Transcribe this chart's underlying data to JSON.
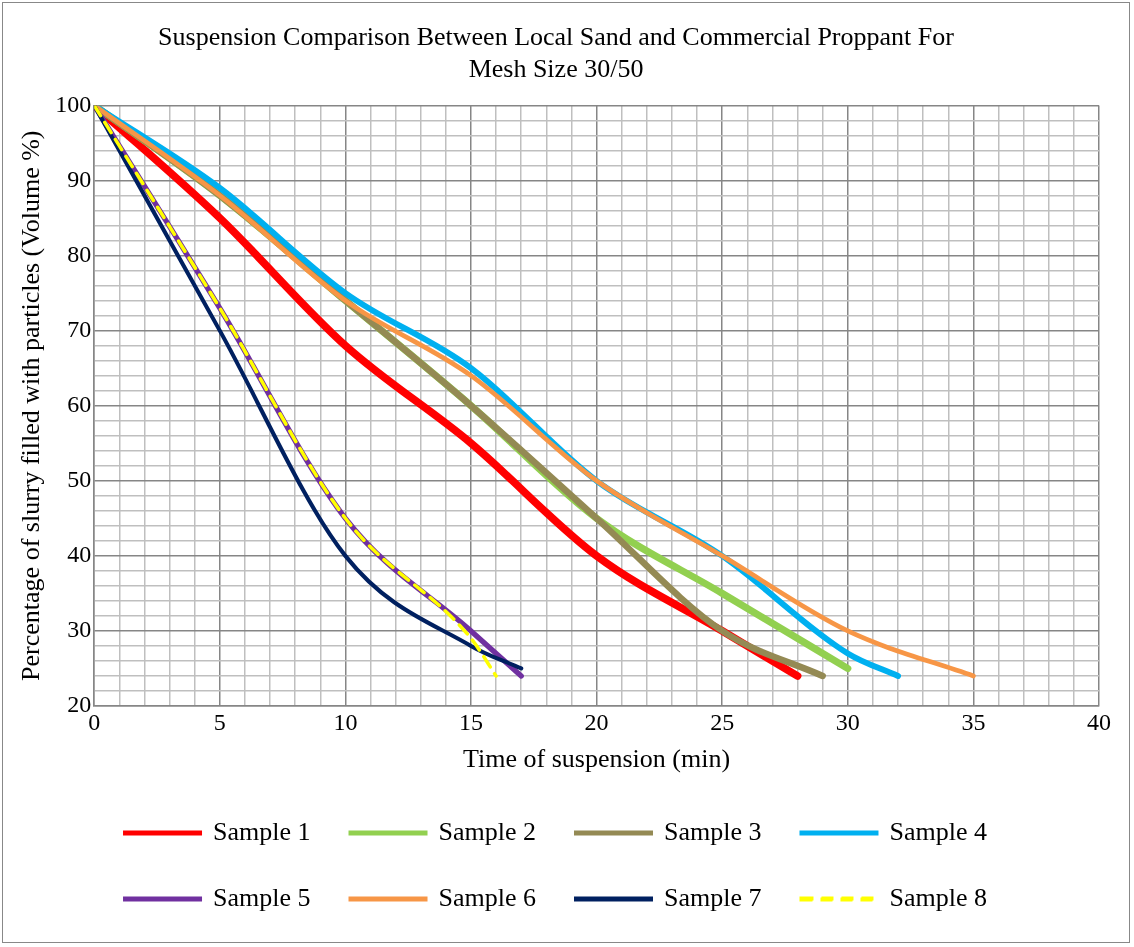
{
  "chart_data": {
    "type": "line",
    "title": "Suspension Comparison Between Local Sand and Commercial Proppant For Mesh Size 30/50",
    "xlabel": "Time of suspension (min)",
    "ylabel": "Percentage of slurry filled with particles (Volume %)",
    "xlim": [
      0,
      40
    ],
    "ylim": [
      20,
      100
    ],
    "xticks": [
      0,
      {
        "value": 1,
        "label": null
      },
      {
        "value": 2,
        "label": null
      },
      {
        "value": 3,
        "label": null
      },
      {
        "value": 4,
        "label": null
      },
      5,
      {
        "value": 6,
        "label": null
      },
      {
        "value": 7,
        "label": null
      },
      {
        "value": 8,
        "label": null
      },
      {
        "value": 9,
        "label": null
      },
      10,
      {
        "value": 11,
        "label": null
      },
      {
        "value": 12,
        "label": null
      },
      {
        "value": 13,
        "label": null
      },
      {
        "value": 14,
        "label": null
      },
      15,
      {
        "value": 16,
        "label": null
      },
      {
        "value": 17,
        "label": null
      },
      {
        "value": 18,
        "label": null
      },
      {
        "value": 19,
        "label": null
      },
      20,
      {
        "value": 21,
        "label": null
      },
      {
        "value": 22,
        "label": null
      },
      {
        "value": 23,
        "label": null
      },
      {
        "value": 24,
        "label": null
      },
      25,
      {
        "value": 26,
        "label": null
      },
      {
        "value": 27,
        "label": null
      },
      {
        "value": 28,
        "label": null
      },
      {
        "value": 29,
        "label": null
      },
      30,
      {
        "value": 31,
        "label": null
      },
      {
        "value": 32,
        "label": null
      },
      {
        "value": 33,
        "label": null
      },
      {
        "value": 34,
        "label": null
      },
      35,
      {
        "value": 36,
        "label": null
      },
      {
        "value": 37,
        "label": null
      },
      {
        "value": 38,
        "label": null
      },
      {
        "value": 39,
        "label": null
      },
      40
    ],
    "yticks": [
      20,
      {
        "value": 22,
        "label": null
      },
      {
        "value": 24,
        "label": null
      },
      {
        "value": 26,
        "label": null
      },
      {
        "value": 28,
        "label": null
      },
      30,
      {
        "value": 32,
        "label": null
      },
      {
        "value": 34,
        "label": null
      },
      {
        "value": 36,
        "label": null
      },
      {
        "value": 38,
        "label": null
      },
      40,
      {
        "value": 42,
        "label": null
      },
      {
        "value": 44,
        "label": null
      },
      {
        "value": 46,
        "label": null
      },
      {
        "value": 48,
        "label": null
      },
      50,
      {
        "value": 52,
        "label": null
      },
      {
        "value": 54,
        "label": null
      },
      {
        "value": 56,
        "label": null
      },
      {
        "value": 58,
        "label": null
      },
      60,
      {
        "value": 62,
        "label": null
      },
      {
        "value": 64,
        "label": null
      },
      {
        "value": 66,
        "label": null
      },
      {
        "value": 68,
        "label": null
      },
      70,
      {
        "value": 72,
        "label": null
      },
      {
        "value": 74,
        "label": null
      },
      {
        "value": 76,
        "label": null
      },
      {
        "value": 78,
        "label": null
      },
      80,
      {
        "value": 82,
        "label": null
      },
      {
        "value": 84,
        "label": null
      },
      {
        "value": 86,
        "label": null
      },
      {
        "value": 88,
        "label": null
      },
      90,
      {
        "value": 92,
        "label": null
      },
      {
        "value": 94,
        "label": null
      },
      {
        "value": 96,
        "label": null
      },
      {
        "value": 98,
        "label": null
      },
      100
    ],
    "grid": true,
    "legend": "bottom",
    "marker": "none",
    "series": [
      {
        "name": "Sample 1",
        "color": "#ff0000",
        "x": [
          0,
          5,
          10,
          15,
          20,
          25,
          28
        ],
        "values": [
          100,
          85,
          68,
          55,
          40,
          30,
          24
        ]
      },
      {
        "name": "Sample 2",
        "color": "#92d050",
        "x": [
          0,
          5,
          10,
          15,
          20,
          25,
          30
        ],
        "values": [
          100,
          88,
          74,
          60,
          45,
          35,
          25
        ]
      },
      {
        "name": "Sample 3",
        "color": "#948a54",
        "x": [
          0,
          5,
          10,
          15,
          20,
          25,
          29
        ],
        "values": [
          100,
          88,
          74,
          60,
          45,
          30,
          24
        ]
      },
      {
        "name": "Sample 4",
        "color": "#00b0f0",
        "x": [
          0,
          5,
          10,
          15,
          20,
          25,
          30,
          32
        ],
        "values": [
          100,
          89,
          75,
          65,
          50,
          40,
          27,
          24
        ]
      },
      {
        "name": "Sample 5",
        "color": "#7030a0",
        "x": [
          0,
          5,
          10,
          15,
          17
        ],
        "values": [
          100,
          73,
          45,
          30,
          24
        ]
      },
      {
        "name": "Sample 6",
        "color": "#f79646",
        "x": [
          0,
          5,
          10,
          15,
          20,
          25,
          30,
          35
        ],
        "values": [
          100,
          88,
          74,
          64,
          50,
          40,
          30,
          24
        ]
      },
      {
        "name": "Sample 7",
        "color": "#002060",
        "x": [
          0,
          5,
          10,
          15,
          17
        ],
        "values": [
          100,
          70,
          40,
          28,
          25
        ]
      },
      {
        "name": "Sample 8",
        "color": "#ffff00",
        "line_style": "dashed",
        "x": [
          0,
          5,
          10,
          15,
          16
        ],
        "values": [
          100,
          73,
          45,
          29,
          24
        ]
      }
    ]
  }
}
